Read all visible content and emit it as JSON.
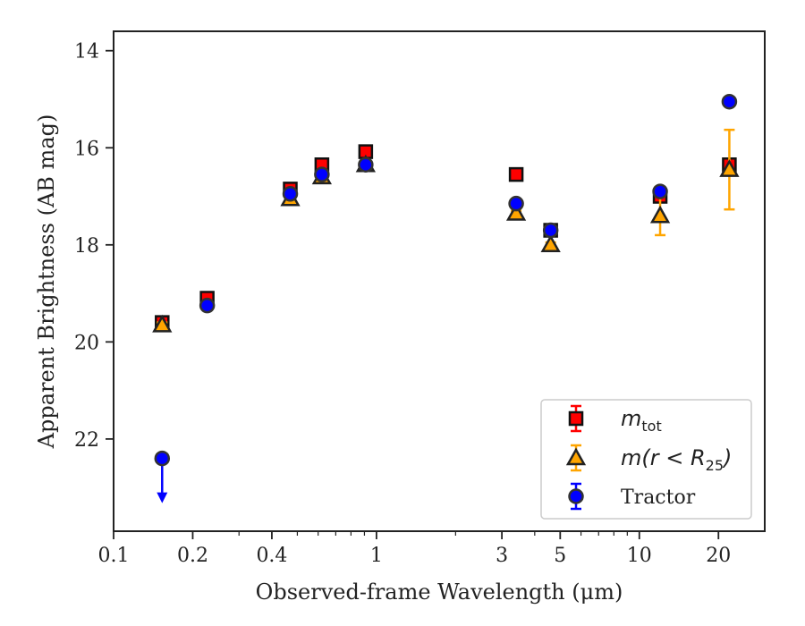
{
  "chart_data": {
    "type": "scatter",
    "title": "",
    "xlabel": "Observed-frame Wavelength (μm)",
    "ylabel": "Apparent Brightness (AB mag)",
    "xscale": "log",
    "xlim": [
      0.1,
      30
    ],
    "ylim": [
      23.9,
      13.6
    ],
    "y_inverted": true,
    "x_ticks": [
      0.1,
      0.2,
      0.4,
      1,
      3,
      5,
      10,
      20
    ],
    "x_tick_labels": [
      "0.1",
      "0.2",
      "0.4",
      "1",
      "3",
      "5",
      "10",
      "20"
    ],
    "y_ticks": [
      14,
      16,
      18,
      20,
      22
    ],
    "y_tick_labels": [
      "14",
      "16",
      "18",
      "20",
      "22"
    ],
    "grid": false,
    "legend_position": "lower-right",
    "series": [
      {
        "name": "m_tot",
        "marker": "square",
        "color": "#ff0000",
        "errorbar_color": "#ff0000",
        "points": [
          {
            "x": 0.153,
            "y": 19.6,
            "err": 0.1
          },
          {
            "x": 0.227,
            "y": 19.1,
            "err": 0.1
          },
          {
            "x": 0.47,
            "y": 16.85,
            "err": 0.05
          },
          {
            "x": 0.62,
            "y": 16.35,
            "err": 0.05
          },
          {
            "x": 0.91,
            "y": 16.08,
            "err": 0.05
          },
          {
            "x": 3.4,
            "y": 16.55,
            "err": 0.05
          },
          {
            "x": 4.6,
            "y": 17.7,
            "err": 0.05
          },
          {
            "x": 12.0,
            "y": 17.0,
            "err": 0.1
          },
          {
            "x": 22.0,
            "y": 16.35,
            "err": 0.1
          }
        ]
      },
      {
        "name": "m(r < R_25)",
        "marker": "triangle",
        "color": "#ffa500",
        "errorbar_color": "#ffa500",
        "points": [
          {
            "x": 0.153,
            "y": 19.65,
            "err": 0.05
          },
          {
            "x": 0.47,
            "y": 17.05,
            "err": 0.05
          },
          {
            "x": 0.62,
            "y": 16.6,
            "err": 0.05
          },
          {
            "x": 0.91,
            "y": 16.35,
            "err": 0.05
          },
          {
            "x": 3.4,
            "y": 17.35,
            "err": 0.05
          },
          {
            "x": 4.6,
            "y": 18.0,
            "err": 0.05
          },
          {
            "x": 12.0,
            "y": 17.4,
            "err": 0.4
          },
          {
            "x": 22.0,
            "y": 16.45,
            "err": 0.82
          }
        ]
      },
      {
        "name": "Tractor",
        "marker": "circle",
        "color": "#0000ff",
        "errorbar_color": "#0000ff",
        "points": [
          {
            "x": 0.153,
            "y": 22.4,
            "err": 0,
            "upper_limit": true
          },
          {
            "x": 0.227,
            "y": 19.25,
            "err": 0.05
          },
          {
            "x": 0.47,
            "y": 16.95,
            "err": 0.05
          },
          {
            "x": 0.62,
            "y": 16.55,
            "err": 0.05
          },
          {
            "x": 0.91,
            "y": 16.35,
            "err": 0.05
          },
          {
            "x": 3.4,
            "y": 17.15,
            "err": 0.05
          },
          {
            "x": 4.6,
            "y": 17.7,
            "err": 0.05
          },
          {
            "x": 12.0,
            "y": 16.9,
            "err": 0.05
          },
          {
            "x": 22.0,
            "y": 15.05,
            "err": 0.05
          }
        ]
      }
    ]
  },
  "legend": {
    "entries": [
      {
        "math_main": "m",
        "math_sub": "tot",
        "text": ""
      },
      {
        "math_main": "m(r < R",
        "math_sub": "25",
        "math_tail": ")",
        "text": ""
      },
      {
        "text": "Tractor"
      }
    ]
  }
}
